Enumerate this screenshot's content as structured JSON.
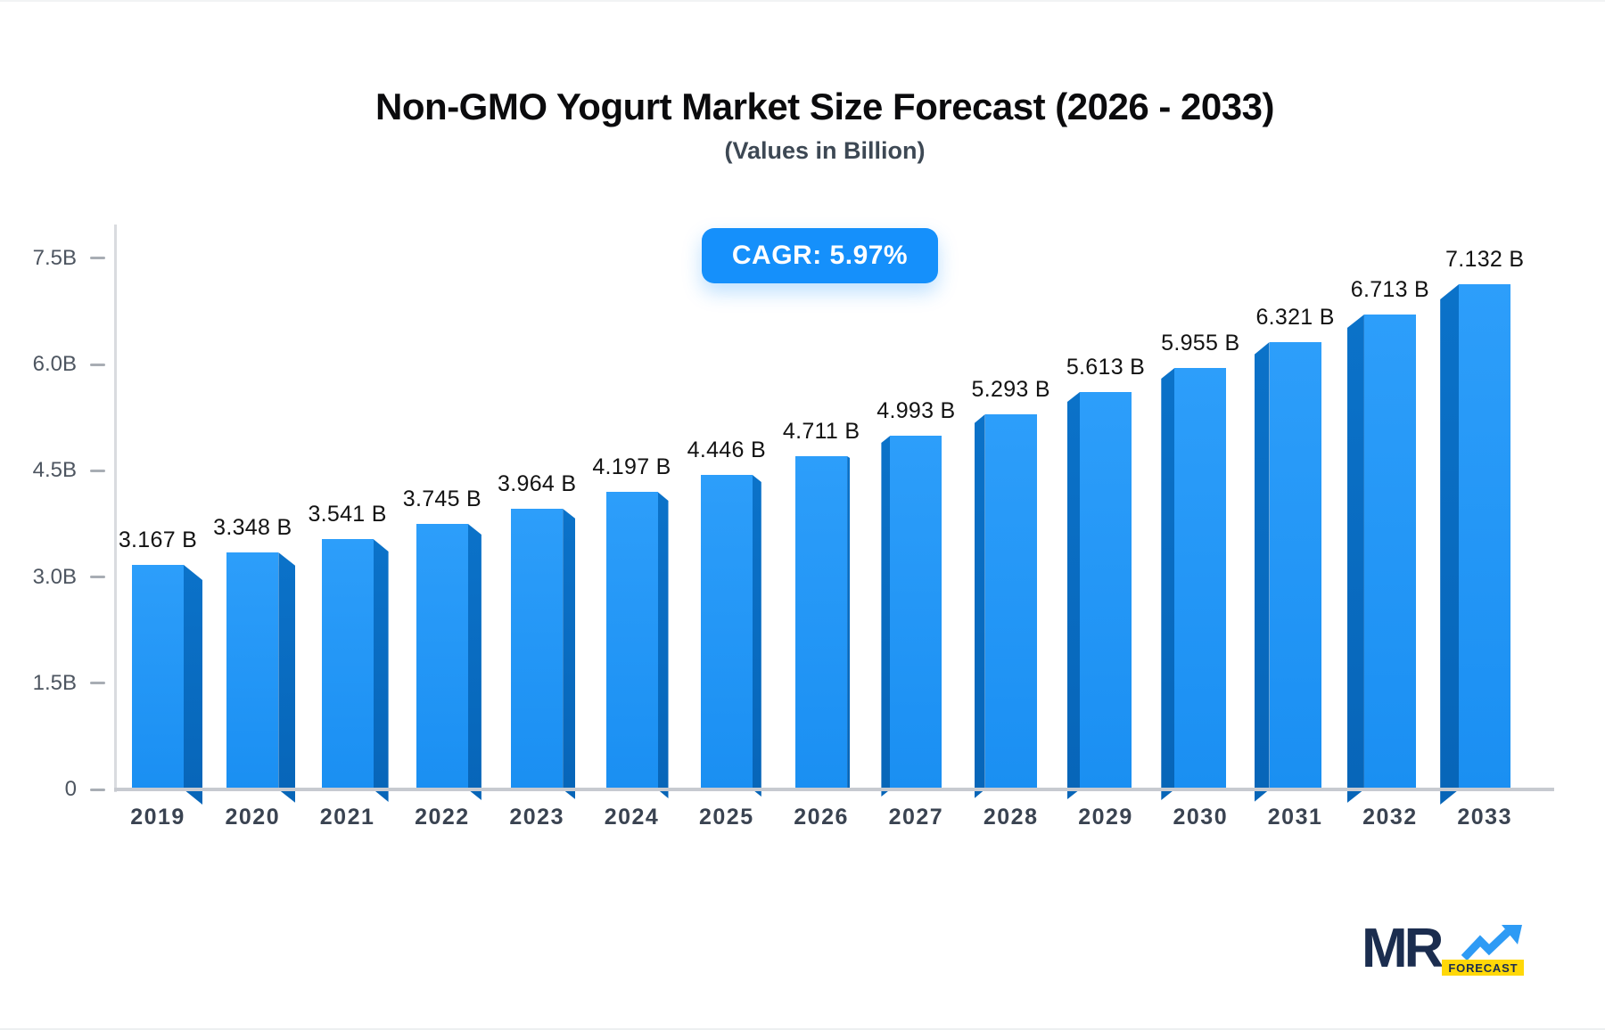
{
  "header": {
    "title": "Non-GMO Yogurt Market Size Forecast (2026 - 2033)",
    "subtitle": "(Values in Billion)"
  },
  "cagr_badge": {
    "label": "CAGR: 5.97%",
    "bg_color": "#1590fb",
    "text_color": "#ffffff"
  },
  "chart_data": {
    "type": "bar",
    "title": "Non-GMO Yogurt Market Size Forecast (2026 - 2033)",
    "subtitle": "(Values in Billion)",
    "cagr_label": "CAGR: 5.97%",
    "unit": "Billion",
    "categories": [
      "2019",
      "2020",
      "2021",
      "2022",
      "2023",
      "2024",
      "2025",
      "2026",
      "2027",
      "2028",
      "2029",
      "2030",
      "2031",
      "2032",
      "2033"
    ],
    "values": [
      3.167,
      3.348,
      3.541,
      3.745,
      3.964,
      4.197,
      4.446,
      4.711,
      4.993,
      5.293,
      5.613,
      5.955,
      6.321,
      6.713,
      7.132
    ],
    "value_labels": [
      "3.167 B",
      "3.348 B",
      "3.541 B",
      "3.745 B",
      "3.964 B",
      "4.197 B",
      "4.446 B",
      "4.711 B",
      "4.993 B",
      "5.293 B",
      "5.613 B",
      "5.955 B",
      "6.321 B",
      "6.713 B",
      "7.132 B"
    ],
    "y_tick_values": [
      7.5,
      6.0,
      4.5,
      3.0,
      1.5,
      0
    ],
    "y_tick_labels": [
      "7.5B",
      "6.0B",
      "4.5B",
      "3.0B",
      "1.5B",
      "0"
    ],
    "ylim": [
      0,
      7.5
    ],
    "grid": false,
    "legend": "none",
    "bar_face_color_top": "#2d9efa",
    "bar_face_color_bottom": "#1a8ff2",
    "bar_side_color_top": "#0b72c9",
    "bar_side_color_bottom": "#0765b8",
    "axis_color": "#c7cad0",
    "value_label_color": "#131313",
    "tick_label_color": "#4d5560"
  },
  "logo": {
    "wordmark": "MR",
    "badge": "FORECAST",
    "navy": "#1b2d4f",
    "blue": "#2e9bf5",
    "yellow": "#ffd808"
  }
}
